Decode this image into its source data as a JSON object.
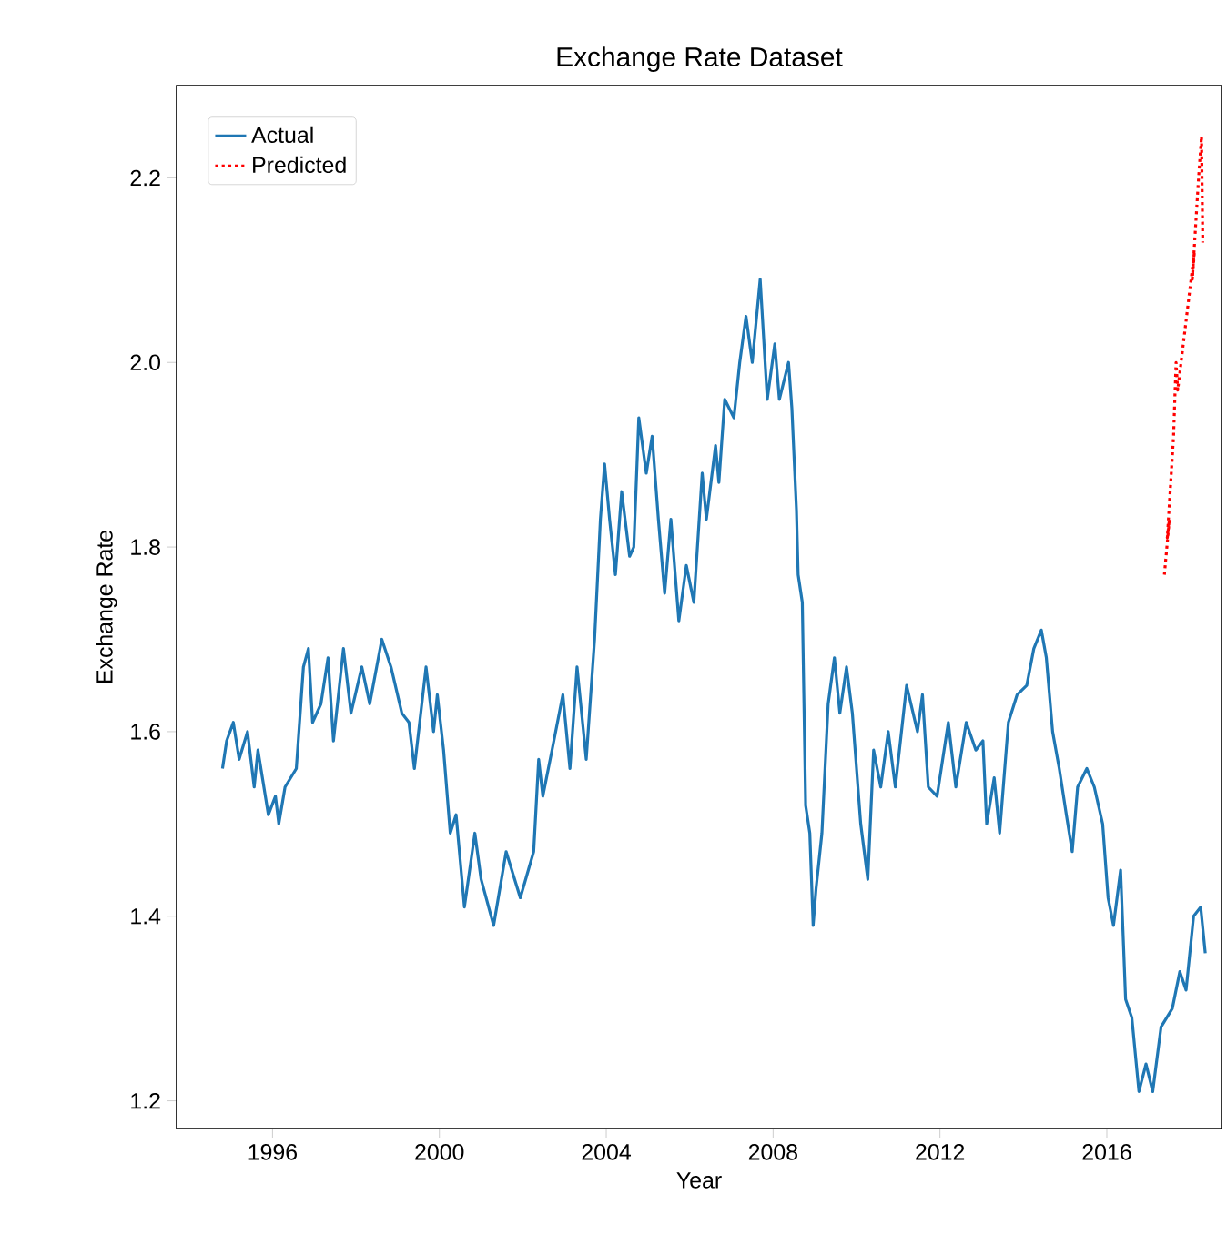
{
  "chart_data": {
    "type": "line",
    "title": "Exchange Rate Dataset",
    "xlabel": "Year",
    "ylabel": "Exchange Rate",
    "xlim": [
      1993.7,
      2018.75
    ],
    "ylim": [
      1.17,
      2.3
    ],
    "xticks": [
      1996,
      2000,
      2004,
      2008,
      2012,
      2016
    ],
    "yticks": [
      {
        "value": 1.2,
        "label": "1.2"
      },
      {
        "value": 1.4,
        "label": "1.4"
      },
      {
        "value": 1.6,
        "label": "1.6"
      },
      {
        "value": 1.8,
        "label": "1.8"
      },
      {
        "value": 2.0,
        "label": "2.0"
      },
      {
        "value": 2.2,
        "label": "2.2"
      }
    ],
    "legend": "top left",
    "grid": false,
    "series": [
      {
        "name": "Actual",
        "color": "#1f77b4",
        "line_style": "solid",
        "x": [
          1994.8,
          1994.9,
          1995.06,
          1995.2,
          1995.4,
          1995.56,
          1995.65,
          1995.9,
          1996.07,
          1996.15,
          1996.3,
          1996.57,
          1996.74,
          1996.86,
          1996.96,
          1997.16,
          1997.33,
          1997.46,
          1997.7,
          1997.88,
          1998.14,
          1998.33,
          1998.62,
          1998.84,
          1999.1,
          1999.27,
          1999.4,
          1999.68,
          1999.86,
          1999.95,
          2000.1,
          2000.26,
          2000.4,
          2000.6,
          2000.85,
          2001.0,
          2001.3,
          2001.6,
          2001.94,
          2002.26,
          2002.38,
          2002.48,
          2002.7,
          2002.96,
          2003.13,
          2003.3,
          2003.52,
          2003.72,
          2003.86,
          2003.96,
          2004.08,
          2004.22,
          2004.37,
          2004.56,
          2004.66,
          2004.78,
          2004.96,
          2005.1,
          2005.25,
          2005.4,
          2005.55,
          2005.74,
          2005.92,
          2006.1,
          2006.3,
          2006.4,
          2006.62,
          2006.7,
          2006.84,
          2007.06,
          2007.2,
          2007.35,
          2007.5,
          2007.69,
          2007.86,
          2008.04,
          2008.15,
          2008.37,
          2008.45,
          2008.56,
          2008.6,
          2008.7,
          2008.78,
          2008.88,
          2008.96,
          2009.03,
          2009.17,
          2009.32,
          2009.47,
          2009.6,
          2009.76,
          2009.9,
          2010.1,
          2010.27,
          2010.41,
          2010.58,
          2010.76,
          2010.93,
          2011.2,
          2011.46,
          2011.58,
          2011.72,
          2011.93,
          2012.2,
          2012.38,
          2012.63,
          2012.86,
          2013.03,
          2013.12,
          2013.3,
          2013.43,
          2013.64,
          2013.85,
          2014.08,
          2014.25,
          2014.43,
          2014.55,
          2014.7,
          2014.86,
          2015.03,
          2015.17,
          2015.3,
          2015.52,
          2015.7,
          2015.9,
          2016.03,
          2016.16,
          2016.33,
          2016.45,
          2016.6,
          2016.77,
          2016.94,
          2017.1,
          2017.3,
          2017.57,
          2017.75,
          2017.9,
          2018.08,
          2018.25,
          2018.36
        ],
        "values": [
          1.56,
          1.59,
          1.61,
          1.57,
          1.6,
          1.54,
          1.58,
          1.51,
          1.53,
          1.5,
          1.54,
          1.56,
          1.67,
          1.69,
          1.61,
          1.63,
          1.68,
          1.59,
          1.69,
          1.62,
          1.67,
          1.63,
          1.7,
          1.67,
          1.62,
          1.61,
          1.56,
          1.67,
          1.6,
          1.64,
          1.58,
          1.49,
          1.51,
          1.41,
          1.49,
          1.44,
          1.39,
          1.47,
          1.42,
          1.47,
          1.57,
          1.53,
          1.58,
          1.64,
          1.56,
          1.67,
          1.57,
          1.7,
          1.83,
          1.89,
          1.83,
          1.77,
          1.86,
          1.79,
          1.8,
          1.94,
          1.88,
          1.92,
          1.83,
          1.75,
          1.83,
          1.72,
          1.78,
          1.74,
          1.88,
          1.83,
          1.91,
          1.87,
          1.96,
          1.94,
          2.0,
          2.05,
          2.0,
          2.09,
          1.96,
          2.02,
          1.96,
          2.0,
          1.95,
          1.84,
          1.77,
          1.74,
          1.52,
          1.49,
          1.39,
          1.43,
          1.49,
          1.63,
          1.68,
          1.62,
          1.67,
          1.62,
          1.5,
          1.44,
          1.58,
          1.54,
          1.6,
          1.54,
          1.65,
          1.6,
          1.64,
          1.54,
          1.53,
          1.61,
          1.54,
          1.61,
          1.58,
          1.59,
          1.5,
          1.55,
          1.49,
          1.61,
          1.64,
          1.65,
          1.69,
          1.71,
          1.68,
          1.6,
          1.56,
          1.51,
          1.47,
          1.54,
          1.56,
          1.54,
          1.5,
          1.42,
          1.39,
          1.45,
          1.31,
          1.29,
          1.21,
          1.24,
          1.21,
          1.28,
          1.3,
          1.34,
          1.32,
          1.4,
          1.41,
          1.36
        ]
      },
      {
        "name": "Predicted",
        "color": "#ff0000",
        "line_style": "dotted",
        "x": [
          2017.38,
          2017.5,
          2017.45,
          2017.6,
          2017.66,
          2017.7,
          2018.1,
          2018.05,
          2018.2,
          2018.27,
          2018.3
        ],
        "values": [
          1.77,
          1.83,
          1.81,
          1.92,
          2.0,
          1.97,
          2.12,
          2.09,
          2.2,
          2.245,
          2.13
        ]
      }
    ]
  }
}
